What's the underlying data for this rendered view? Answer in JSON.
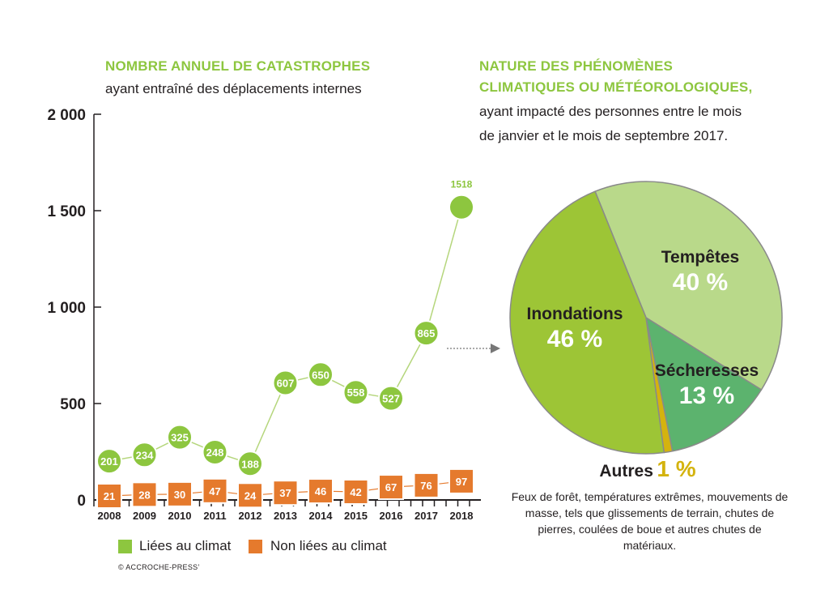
{
  "left_title": "NOMBRE ANNUEL DE CATASTROPHES",
  "left_subtitle": "ayant entraîné des déplacements internes",
  "right_title_1": "NATURE DES PHÉNOMÈNES",
  "right_title_2": "CLIMATIQUES OU MÉTÉOROLOGIQUES,",
  "right_subtitle_1": "ayant impacté des personnes entre le mois",
  "right_subtitle_2": "de janvier et le mois de septembre 2017.",
  "copyright": "© ACCROCHE-PRESS’",
  "colors": {
    "climate": "#8dc63f",
    "non_climate": "#e57a2d",
    "inondations": "#9dc536",
    "tempetes": "#b9d98a",
    "secheresses": "#5cb36e",
    "autres": "#d4b30e",
    "axis": "#231f20"
  },
  "autres_description": "Feux de forêt, températures extrêmes, mouvements de masse, tels que glissements de terrain, chutes de pierres, coulées de boue et autres chutes de matériaux.",
  "chart_data": [
    {
      "type": "line",
      "title": "NOMBRE ANNUEL DE CATASTROPHES",
      "subtitle": "ayant entraîné des déplacements internes",
      "categories": [
        "2008",
        "2009",
        "2010",
        "2011",
        "2012",
        "2013",
        "2014",
        "2015",
        "2016",
        "2017",
        "2018"
      ],
      "ylim": [
        0,
        2000
      ],
      "yticks": [
        0,
        500,
        1000,
        1500,
        2000
      ],
      "ytick_labels": [
        "0",
        "500",
        "1 000",
        "1 500",
        "2 000"
      ],
      "grid": false,
      "legend_position": "bottom",
      "series": [
        {
          "name": "Liées au climat",
          "values": [
            201,
            234,
            325,
            248,
            188,
            607,
            650,
            558,
            527,
            865,
            1518
          ],
          "marker": "circle"
        },
        {
          "name": "Non liées au climat",
          "values": [
            21,
            28,
            30,
            47,
            24,
            37,
            46,
            42,
            67,
            76,
            97
          ],
          "marker": "square"
        }
      ]
    },
    {
      "type": "pie",
      "title": "NATURE DES PHÉNOMÈNES CLIMATIQUES OU MÉTÉOROLOGIQUES,",
      "subtitle": "ayant impacté des personnes entre le mois de janvier et le mois de septembre 2017.",
      "slices": [
        {
          "label": "Tempêtes",
          "value": 40,
          "display": "40 %"
        },
        {
          "label": "Sécheresses",
          "value": 13,
          "display": "13 %"
        },
        {
          "label": "Autres",
          "value": 1,
          "display": "1 %"
        },
        {
          "label": "Inondations",
          "value": 46,
          "display": "46 %"
        }
      ]
    }
  ]
}
